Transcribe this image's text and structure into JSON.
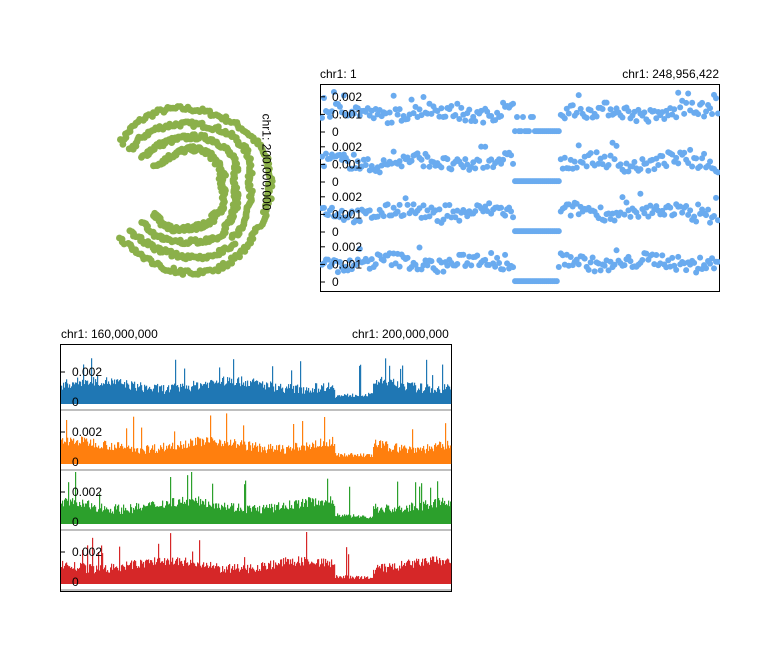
{
  "circular": {
    "label": "chr1: 200,000,000",
    "color": "#8bb04a",
    "rings": 4
  },
  "scatter": {
    "start_label": "chr1: 1",
    "end_label": "chr1: 248,956,422",
    "color": "#6aabef",
    "tracks": [
      {
        "ticks": [
          "0.002",
          "0.001",
          "0"
        ],
        "ymax": 0.0025
      },
      {
        "ticks": [
          "0.002",
          "0.001",
          "0"
        ],
        "ymax": 0.0025
      },
      {
        "ticks": [
          "0.002",
          "0.001",
          "0"
        ],
        "ymax": 0.0025
      },
      {
        "ticks": [
          "0.002",
          "0.001",
          "0"
        ],
        "ymax": 0.0025
      }
    ]
  },
  "bars": {
    "start_label": "chr1: 160,000,000",
    "end_label": "chr1: 200,000,000",
    "tracks": [
      {
        "color": "#1f77b4",
        "ticks": [
          "0.002",
          "0"
        ]
      },
      {
        "color": "#ff7f0e",
        "ticks": [
          "0.002",
          "0"
        ]
      },
      {
        "color": "#2ca02c",
        "ticks": [
          "0.002",
          "0"
        ]
      },
      {
        "color": "#d62728",
        "ticks": [
          "0.002",
          "0"
        ]
      }
    ]
  },
  "chart_data": [
    {
      "type": "scatter",
      "title": "",
      "xlabel": "",
      "ylabel": "",
      "x_range_labels": [
        "chr1: 1",
        "chr1: 248,956,422"
      ],
      "series_count": 4,
      "ylim": [
        0,
        0.0025
      ],
      "y_ticks": [
        0,
        0.001,
        0.002
      ],
      "gap_region": "centromere, values near 0"
    },
    {
      "type": "bar",
      "title": "",
      "xlabel": "",
      "ylabel": "",
      "x_range_labels": [
        "chr1: 160,000,000",
        "chr1: 200,000,000"
      ],
      "series_count": 4,
      "y_ticks": [
        0,
        0.002
      ]
    }
  ]
}
